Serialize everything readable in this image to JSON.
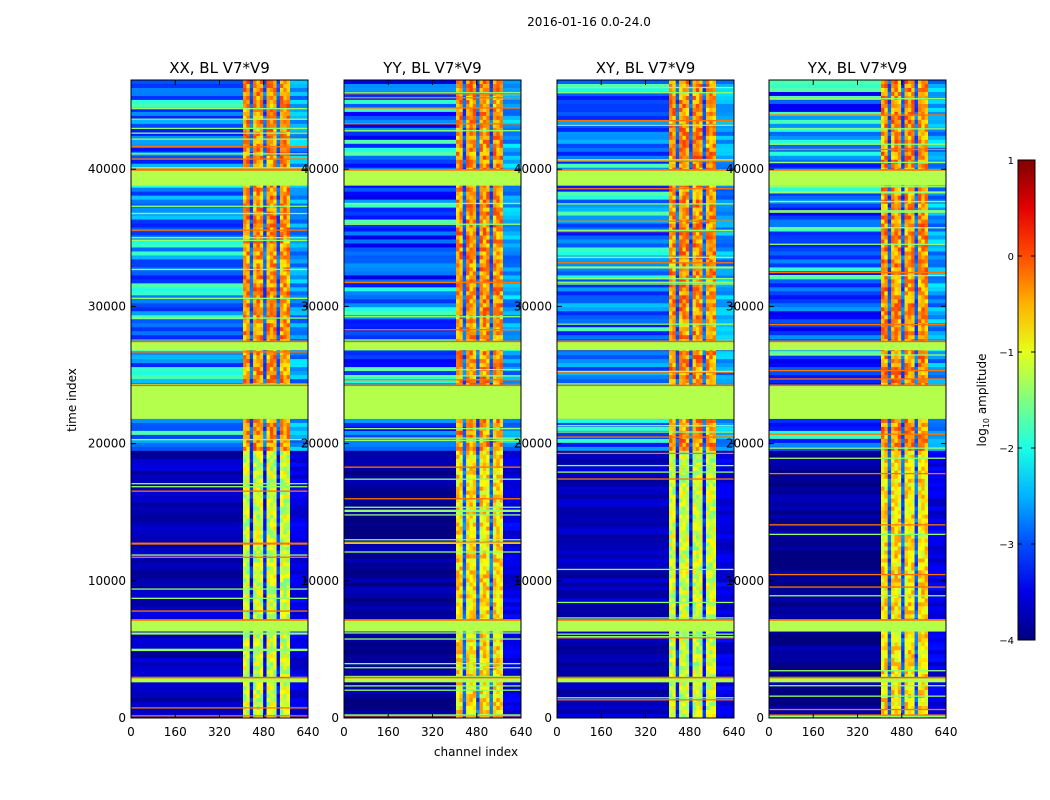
{
  "figure": {
    "suptitle": "2016-01-16 0.0-24.0"
  },
  "chart_data": {
    "type": "heatmap",
    "panels": [
      {
        "title": "XX, BL V7*V9",
        "pol": "XX"
      },
      {
        "title": "YY, BL V7*V9",
        "pol": "YY"
      },
      {
        "title": "XY, BL V7*V9",
        "pol": "XY"
      },
      {
        "title": "YX, BL V7*V9",
        "pol": "YX"
      }
    ],
    "xlabel": "channel index",
    "ylabel": "time index",
    "xlim": [
      0,
      640
    ],
    "ylim": [
      0,
      46500
    ],
    "xticks": [
      0,
      160,
      320,
      480,
      640
    ],
    "yticks": [
      0,
      10000,
      20000,
      30000,
      40000
    ],
    "colorbar": {
      "label": "log",
      "label_sub": "10",
      "label_rest": " amplitude",
      "range": [
        -4,
        1
      ],
      "ticks": [
        -4,
        -3,
        -2,
        -1,
        0,
        1
      ],
      "tick_labels": [
        "−4",
        "−3",
        "−2",
        "−1",
        "0",
        "1"
      ],
      "colormap": "jet"
    },
    "high_channel_band": [
      405,
      575
    ],
    "flagged_time_bands": [
      [
        6300,
        7200
      ],
      [
        21800,
        24300
      ],
      [
        26800,
        27500
      ],
      [
        38800,
        40000
      ],
      [
        2600,
        3000
      ]
    ]
  }
}
